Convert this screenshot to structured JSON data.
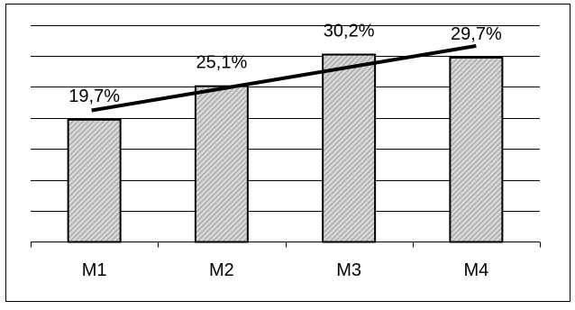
{
  "chart_data": {
    "type": "bar",
    "categories": [
      "M1",
      "M2",
      "M3",
      "M4"
    ],
    "values": [
      19.7,
      25.1,
      30.2,
      29.7
    ],
    "data_labels": [
      "19,7%",
      "25,1%",
      "30,2%",
      "29,7%"
    ],
    "title": "",
    "xlabel": "",
    "ylabel": "",
    "ylim": [
      0,
      35
    ],
    "grid": true,
    "legend": "none",
    "trendline": {
      "type": "linear",
      "start_value": 21.2,
      "end_value": 31.6
    },
    "colors": {
      "bar_fill": "#d6d6d6",
      "bar_hatch": "#8a8a8a",
      "bar_stroke": "#000000",
      "gridline": "#000000",
      "trendline": "#000000",
      "frame": "#000000"
    }
  }
}
